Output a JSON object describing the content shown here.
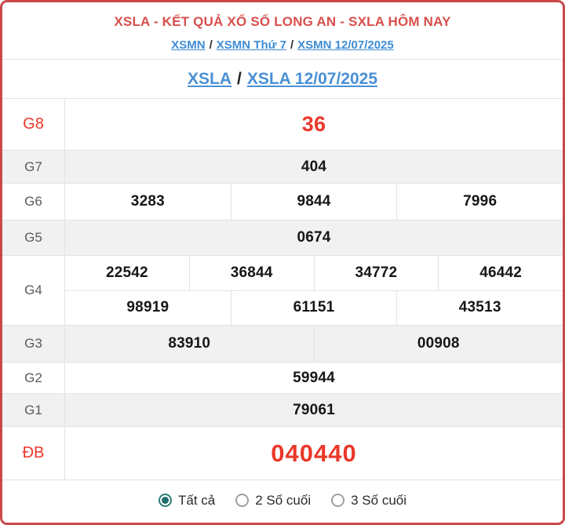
{
  "header": {
    "title": "XSLA - KẾT QUẢ XỔ SỐ LONG AN - SXLA HÔM NAY",
    "separator": "/",
    "breadcrumb": [
      "XSMN",
      "XSMN Thứ 7",
      "XSMN 12/07/2025"
    ]
  },
  "subtitle": {
    "separator": "/",
    "links": [
      "XSLA",
      "XSLA 12/07/2025"
    ]
  },
  "results": {
    "rows": [
      {
        "key": "g8",
        "label": "G8",
        "highlight": true,
        "lines": [
          [
            "36"
          ]
        ]
      },
      {
        "key": "g7",
        "label": "G7",
        "highlight": false,
        "lines": [
          [
            "404"
          ]
        ]
      },
      {
        "key": "g6",
        "label": "G6",
        "highlight": false,
        "lines": [
          [
            "3283",
            "9844",
            "7996"
          ]
        ]
      },
      {
        "key": "g5",
        "label": "G5",
        "highlight": false,
        "lines": [
          [
            "0674"
          ]
        ]
      },
      {
        "key": "g4",
        "label": "G4",
        "highlight": false,
        "lines": [
          [
            "22542",
            "36844",
            "34772",
            "46442"
          ],
          [
            "98919",
            "61151",
            "43513"
          ]
        ]
      },
      {
        "key": "g3",
        "label": "G3",
        "highlight": false,
        "lines": [
          [
            "83910",
            "00908"
          ]
        ]
      },
      {
        "key": "g2",
        "label": "G2",
        "highlight": false,
        "lines": [
          [
            "59944"
          ]
        ]
      },
      {
        "key": "g1",
        "label": "G1",
        "highlight": false,
        "lines": [
          [
            "79061"
          ]
        ]
      },
      {
        "key": "db",
        "label": "ĐB",
        "highlight": true,
        "lines": [
          [
            "040440"
          ]
        ]
      }
    ]
  },
  "filter": {
    "options": [
      {
        "label": "Tất cả",
        "selected": true
      },
      {
        "label": "2 Số cuối",
        "selected": false
      },
      {
        "label": "3 Số cuối",
        "selected": false
      }
    ]
  },
  "colors": {
    "border_red": "#c9494b",
    "title_red": "#d94f4c",
    "value_red": "#ea3829",
    "link_blue": "#4a90d5",
    "stripe_gray": "#f1f1f1",
    "radio_teal": "#2a7d78"
  }
}
